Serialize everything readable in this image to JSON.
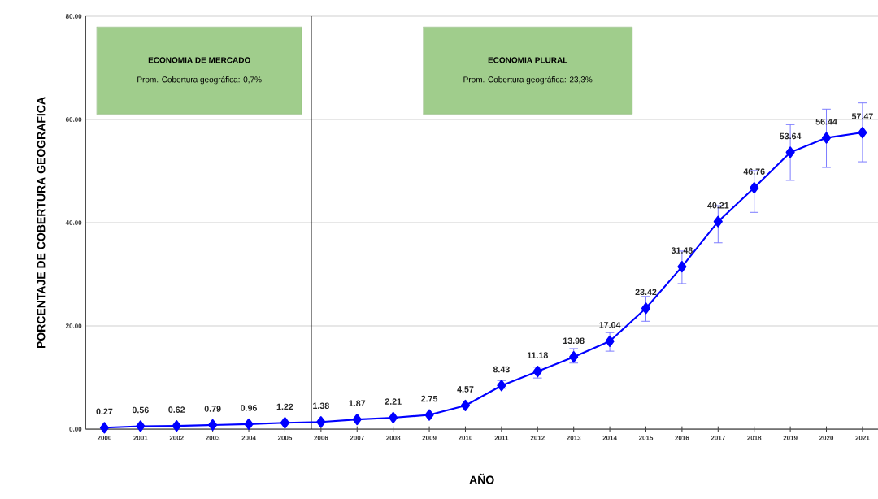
{
  "chart_data": {
    "type": "line",
    "xlabel": "AÑO",
    "ylabel": "PORCENTAJE DE COBERTURA GEOGRAFICA",
    "x": [
      2000,
      2001,
      2002,
      2003,
      2004,
      2005,
      2006,
      2007,
      2008,
      2009,
      2010,
      2011,
      2012,
      2013,
      2014,
      2015,
      2016,
      2017,
      2018,
      2019,
      2020,
      2021
    ],
    "values": [
      0.27,
      0.56,
      0.62,
      0.79,
      0.96,
      1.22,
      1.38,
      1.87,
      2.21,
      2.75,
      4.57,
      8.43,
      11.18,
      13.98,
      17.04,
      23.42,
      31.48,
      40.21,
      46.76,
      53.64,
      56.44,
      57.47
    ],
    "errors": [
      null,
      null,
      null,
      null,
      null,
      null,
      null,
      null,
      null,
      null,
      null,
      [
        7.9,
        9.4
      ],
      [
        9.9,
        12.0
      ],
      [
        12.8,
        15.6
      ],
      [
        15.1,
        18.7
      ],
      [
        20.9,
        25.7
      ],
      [
        28.2,
        34.5
      ],
      [
        36.1,
        43.3
      ],
      [
        42.0,
        50.1
      ],
      [
        48.2,
        59.0
      ],
      [
        50.7,
        62.0
      ],
      [
        51.8,
        63.2
      ]
    ],
    "color": "#0000ff",
    "marker": "diamond",
    "line_style": "solid",
    "data_labels": true,
    "grid": "y",
    "xlim": [
      1999.48,
      2021.43
    ],
    "ylim": [
      0,
      80
    ],
    "xticks": [
      2000,
      2001,
      2002,
      2003,
      2004,
      2005,
      2006,
      2007,
      2008,
      2009,
      2010,
      2011,
      2012,
      2013,
      2014,
      2015,
      2016,
      2017,
      2018,
      2019,
      2020,
      2021
    ],
    "yticks": [
      {
        "value": 0,
        "label": "0.00"
      },
      {
        "value": 20,
        "label": "20.00"
      },
      {
        "value": 40,
        "label": "40.00"
      },
      {
        "value": 60,
        "label": "60.00"
      },
      {
        "value": 80,
        "label": "80.00"
      }
    ],
    "ref_lines": [
      {
        "axis": "x",
        "value": 2005.73,
        "color": "#000000"
      }
    ],
    "annotations": [
      "ECONOMIA DE MERCADO",
      "Prom. Cobertura geográfica: 0,7%",
      "ECONOMIA PLURAL",
      "Prom. Cobertura geográfica: 23,3%"
    ]
  }
}
